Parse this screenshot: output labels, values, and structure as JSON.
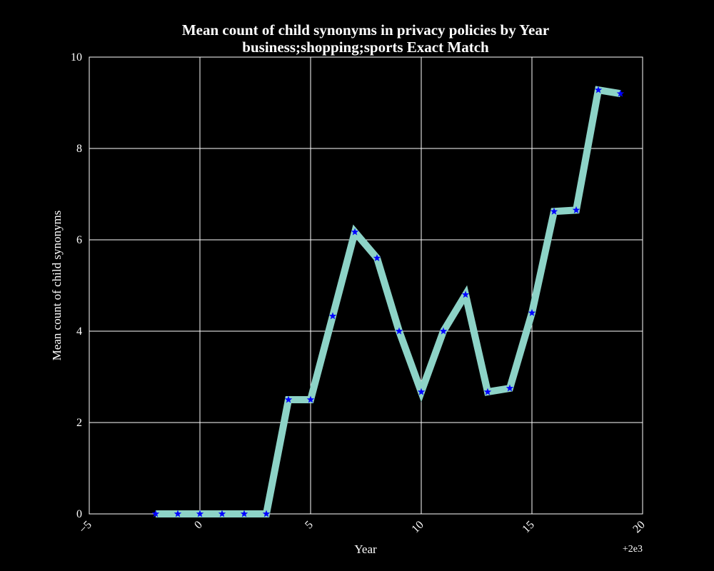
{
  "chart_data": {
    "type": "line",
    "title": [
      "Mean count of child synonyms in privacy policies by Year",
      "business;shopping;sports Exact Match"
    ],
    "xlabel": "Year",
    "ylabel": "Mean count of child synonyms",
    "x_offset_label": "+2e3",
    "xlim": [
      -5,
      20
    ],
    "ylim": [
      0,
      10
    ],
    "x_ticks": [
      -5,
      0,
      5,
      10,
      15,
      20
    ],
    "x_tick_labels": [
      "−5",
      "0",
      "5",
      "10",
      "15",
      "20"
    ],
    "y_ticks": [
      0,
      2,
      4,
      6,
      8,
      10
    ],
    "y_tick_labels": [
      "0",
      "2",
      "4",
      "6",
      "8",
      "10"
    ],
    "grid": true,
    "line_color": "#8dd3c7",
    "marker_color": "#0000ff",
    "marker": "star",
    "background": "#000000",
    "foreground": "#ffffff",
    "x": [
      -2,
      -1,
      0,
      1,
      2,
      3,
      4,
      5,
      6,
      7,
      8,
      9,
      10,
      11,
      12,
      13,
      14,
      15,
      16,
      17,
      18,
      19
    ],
    "values": [
      0,
      0,
      0,
      0,
      0,
      0,
      2.5,
      2.5,
      4.33,
      6.17,
      5.6,
      4.0,
      2.67,
      4.0,
      4.8,
      2.67,
      2.75,
      4.4,
      6.62,
      6.65,
      9.28,
      9.2
    ]
  }
}
